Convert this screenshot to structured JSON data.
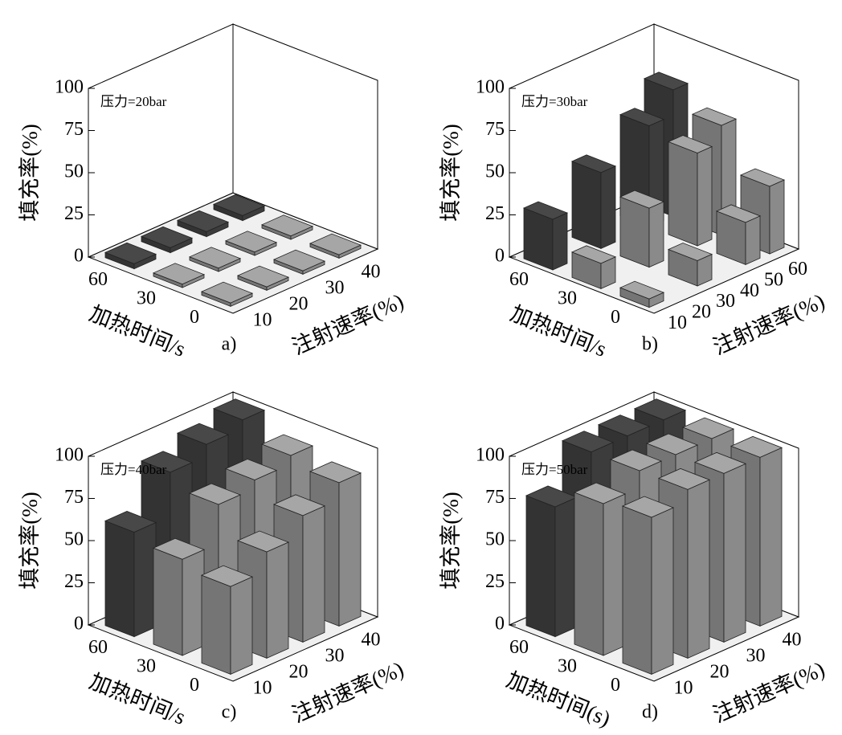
{
  "chart_data": [
    {
      "type": "bar3d",
      "annotation": "压力=20bar",
      "label": "a)",
      "zlabel": "填充率(%)",
      "xlabel": "注射速率(%)",
      "ylabel": "加热时间/s",
      "xcategories": [
        10,
        20,
        30,
        40
      ],
      "ycategories": [
        0,
        30,
        60
      ],
      "colors": [
        "#8a8a8a",
        "#8a8a8a",
        "#3c3c3c"
      ],
      "values": [
        [
          2,
          2,
          2,
          2
        ],
        [
          2,
          2,
          2,
          2
        ],
        [
          3,
          3,
          3,
          3
        ]
      ],
      "zlim": [
        0,
        100
      ],
      "zticks": [
        0,
        25,
        50,
        75,
        100
      ]
    },
    {
      "type": "bar3d",
      "annotation": "压力=30bar",
      "label": "b)",
      "zlabel": "填充率(%)",
      "xlabel": "注射速率(%)",
      "ylabel": "加热时间/s",
      "xcategories": [
        10,
        20,
        30,
        40,
        50,
        60
      ],
      "ycategories": [
        0,
        30,
        60
      ],
      "colors": [
        "#8a8a8a",
        "#8a8a8a",
        "#3c3c3c"
      ],
      "values": [
        [
          5,
          null,
          15,
          null,
          25,
          40
        ],
        [
          15,
          null,
          35,
          null,
          55,
          65
        ],
        [
          30,
          null,
          45,
          null,
          60,
          75
        ]
      ],
      "zlim": [
        0,
        100
      ],
      "zticks": [
        0,
        25,
        50,
        75,
        100
      ]
    },
    {
      "type": "bar3d",
      "annotation": "压力=40bar",
      "label": "c)",
      "zlabel": "填充率(%)",
      "xlabel": "注射速率(%)",
      "ylabel": "加热时间/s",
      "xcategories": [
        10,
        20,
        30,
        40
      ],
      "ycategories": [
        0,
        30,
        60
      ],
      "colors": [
        "#8a8a8a",
        "#8a8a8a",
        "#3c3c3c"
      ],
      "values": [
        [
          52,
          63,
          75,
          85
        ],
        [
          57,
          80,
          85,
          90
        ],
        [
          62,
          88,
          95,
          100
        ]
      ],
      "zlim": [
        0,
        100
      ],
      "zticks": [
        0,
        25,
        50,
        75,
        100
      ]
    },
    {
      "type": "bar3d",
      "annotation": "压力=50bar",
      "label": "d)",
      "zlabel": "填充率(%)",
      "xlabel": "注射速率(%)",
      "ylabel": "加热时间(s)",
      "xcategories": [
        10,
        20,
        30,
        40
      ],
      "ycategories": [
        0,
        30,
        60
      ],
      "colors": [
        "#8a8a8a",
        "#8a8a8a",
        "#3c3c3c"
      ],
      "values": [
        [
          93,
          100,
          100,
          100
        ],
        [
          90,
          100,
          100,
          100
        ],
        [
          77,
          100,
          100,
          100
        ]
      ],
      "zlim": [
        0,
        100
      ],
      "zticks": [
        0,
        25,
        50,
        75,
        100
      ]
    }
  ]
}
